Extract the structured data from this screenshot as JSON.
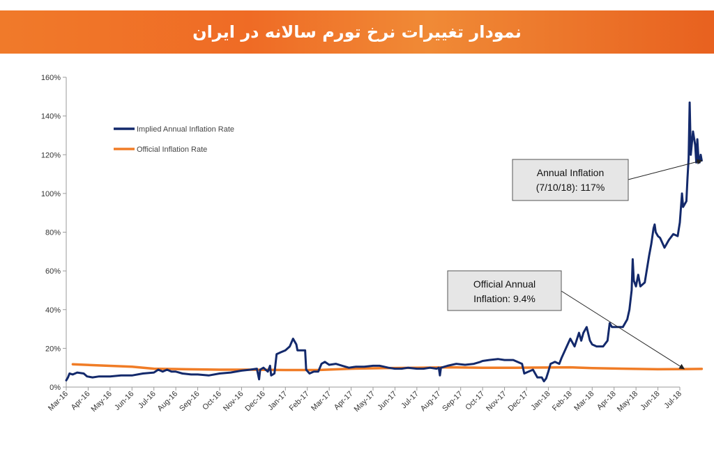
{
  "header": {
    "title": "نمودار تغییرات نرخ تورم سالانه در ایران",
    "background": "#ef6b25"
  },
  "chart_data": {
    "type": "line",
    "title": "",
    "xlabel": "",
    "ylabel": "",
    "ylim": [
      0,
      160
    ],
    "y_ticks": [
      "0%",
      "20%",
      "40%",
      "60%",
      "80%",
      "100%",
      "120%",
      "140%",
      "160%"
    ],
    "x_ticks": [
      "Mar-16",
      "Apr-16",
      "May-16",
      "Jun-16",
      "Jul-16",
      "Aug-16",
      "Sep-16",
      "Oct-16",
      "Nov-16",
      "Dec-16",
      "Jan-17",
      "Feb-17",
      "Mar-17",
      "Apr-17",
      "May-17",
      "Jun-17",
      "Jul-17",
      "Aug-17",
      "Sep-17",
      "Oct-17",
      "Nov-17",
      "Dec-17",
      "Jan-18",
      "Feb-18",
      "Mar-18",
      "Apr-18",
      "May-18",
      "Jun-18",
      "Jul-18"
    ],
    "grid": false,
    "legend_position": "top-left",
    "series": [
      {
        "name": "Implied Annual Inflation Rate",
        "color": "#13296b",
        "points": [
          [
            0.0,
            3.5
          ],
          [
            0.08,
            5
          ],
          [
            0.15,
            7
          ],
          [
            0.3,
            6.5
          ],
          [
            0.5,
            7.5
          ],
          [
            0.8,
            7
          ],
          [
            0.95,
            5.5
          ],
          [
            1.2,
            5
          ],
          [
            1.5,
            5.5
          ],
          [
            2.0,
            5.5
          ],
          [
            2.5,
            6
          ],
          [
            3.0,
            6
          ],
          [
            3.5,
            7
          ],
          [
            4.0,
            7.5
          ],
          [
            4.2,
            9
          ],
          [
            4.4,
            8
          ],
          [
            4.6,
            9
          ],
          [
            4.8,
            8
          ],
          [
            5.0,
            8
          ],
          [
            5.3,
            7
          ],
          [
            5.7,
            6.5
          ],
          [
            6.0,
            6.5
          ],
          [
            6.5,
            6
          ],
          [
            7.0,
            7
          ],
          [
            7.5,
            7.5
          ],
          [
            8.0,
            8.5
          ],
          [
            8.4,
            9
          ],
          [
            8.7,
            9.5
          ],
          [
            8.8,
            4
          ],
          [
            8.85,
            9
          ],
          [
            9.0,
            10
          ],
          [
            9.2,
            8
          ],
          [
            9.3,
            11
          ],
          [
            9.35,
            6
          ],
          [
            9.5,
            7
          ],
          [
            9.6,
            17
          ],
          [
            9.8,
            18
          ],
          [
            10.0,
            19
          ],
          [
            10.2,
            21
          ],
          [
            10.35,
            25
          ],
          [
            10.5,
            22
          ],
          [
            10.55,
            19
          ],
          [
            10.9,
            19
          ],
          [
            10.95,
            9
          ],
          [
            11.1,
            7
          ],
          [
            11.3,
            8
          ],
          [
            11.5,
            8
          ],
          [
            11.65,
            12
          ],
          [
            11.8,
            13
          ],
          [
            12.0,
            11.5
          ],
          [
            12.3,
            12
          ],
          [
            12.6,
            11
          ],
          [
            12.9,
            10
          ],
          [
            13.2,
            10.5
          ],
          [
            13.6,
            10.5
          ],
          [
            14.0,
            11
          ],
          [
            14.3,
            11
          ],
          [
            14.7,
            10
          ],
          [
            15.0,
            9.5
          ],
          [
            15.3,
            9.5
          ],
          [
            15.6,
            10
          ],
          [
            16.0,
            9.5
          ],
          [
            16.3,
            9.5
          ],
          [
            16.6,
            10
          ],
          [
            16.9,
            9.5
          ],
          [
            17.0,
            10
          ],
          [
            17.05,
            6
          ],
          [
            17.1,
            10
          ],
          [
            17.4,
            11
          ],
          [
            17.8,
            12
          ],
          [
            18.2,
            11.5
          ],
          [
            18.6,
            12
          ],
          [
            18.9,
            13
          ],
          [
            19.0,
            13.5
          ],
          [
            19.3,
            14
          ],
          [
            19.7,
            14.5
          ],
          [
            20.0,
            14
          ],
          [
            20.4,
            14
          ],
          [
            20.8,
            12
          ],
          [
            20.9,
            7
          ],
          [
            21.1,
            8
          ],
          [
            21.3,
            9
          ],
          [
            21.5,
            5
          ],
          [
            21.7,
            5
          ],
          [
            21.8,
            3
          ],
          [
            21.9,
            4.5
          ],
          [
            22.0,
            8
          ],
          [
            22.1,
            12
          ],
          [
            22.3,
            13
          ],
          [
            22.5,
            12
          ],
          [
            22.6,
            15
          ],
          [
            22.8,
            20
          ],
          [
            23.0,
            25
          ],
          [
            23.2,
            21
          ],
          [
            23.4,
            28
          ],
          [
            23.5,
            24
          ],
          [
            23.6,
            28
          ],
          [
            23.75,
            31
          ],
          [
            23.9,
            24
          ],
          [
            24.0,
            22
          ],
          [
            24.2,
            21
          ],
          [
            24.5,
            21
          ],
          [
            24.7,
            24
          ],
          [
            24.8,
            33
          ],
          [
            24.9,
            31
          ],
          [
            25.1,
            31
          ],
          [
            25.4,
            31
          ],
          [
            25.6,
            35
          ],
          [
            25.7,
            40
          ],
          [
            25.8,
            50
          ],
          [
            25.85,
            66
          ],
          [
            25.9,
            55
          ],
          [
            26.0,
            52
          ],
          [
            26.1,
            58
          ],
          [
            26.2,
            52
          ],
          [
            26.4,
            54
          ],
          [
            26.6,
            68
          ],
          [
            26.7,
            74
          ],
          [
            26.8,
            82
          ],
          [
            26.85,
            84
          ],
          [
            26.9,
            80
          ],
          [
            27.0,
            78
          ],
          [
            27.1,
            77
          ],
          [
            27.3,
            72
          ],
          [
            27.5,
            76
          ],
          [
            27.7,
            79
          ],
          [
            27.9,
            78
          ],
          [
            28.0,
            85
          ],
          [
            28.1,
            100
          ],
          [
            28.15,
            93
          ],
          [
            28.3,
            96
          ],
          [
            28.35,
            108
          ],
          [
            28.4,
            118
          ],
          [
            28.45,
            147
          ],
          [
            28.5,
            120
          ],
          [
            28.6,
            132
          ],
          [
            28.7,
            125
          ],
          [
            28.75,
            116
          ],
          [
            28.8,
            128
          ],
          [
            28.85,
            118
          ],
          [
            28.9,
            116
          ],
          [
            28.95,
            120
          ],
          [
            29.0,
            117
          ]
        ]
      },
      {
        "name": "Official Inflation Rate",
        "color": "#f07c26",
        "points": [
          [
            0.3,
            11.8
          ],
          [
            1.5,
            11.2
          ],
          [
            3.0,
            10.5
          ],
          [
            4.0,
            9.5
          ],
          [
            5.5,
            9.2
          ],
          [
            7.0,
            9.0
          ],
          [
            8.5,
            9.0
          ],
          [
            10.0,
            8.8
          ],
          [
            11.5,
            8.8
          ],
          [
            13.0,
            9.5
          ],
          [
            14.5,
            9.8
          ],
          [
            16.0,
            10.0
          ],
          [
            17.5,
            10.2
          ],
          [
            19.0,
            10.0
          ],
          [
            20.5,
            10.0
          ],
          [
            22.0,
            10.1
          ],
          [
            23.0,
            10.2
          ],
          [
            24.0,
            9.8
          ],
          [
            25.5,
            9.5
          ],
          [
            27.0,
            9.2
          ],
          [
            28.3,
            9.3
          ],
          [
            29.0,
            9.4
          ]
        ]
      }
    ],
    "annotations": [
      {
        "line1": "Annual Inflation",
        "line2": "(7/10/18): 117%"
      },
      {
        "line1": "Official Annual",
        "line2": "Inflation: 9.4%"
      }
    ]
  }
}
